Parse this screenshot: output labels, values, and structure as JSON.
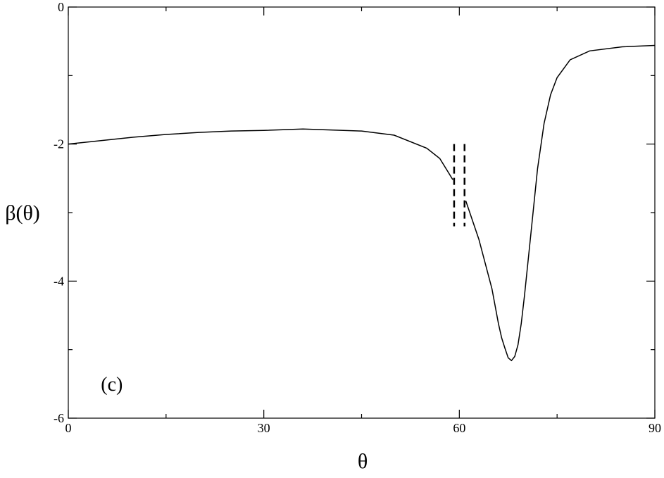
{
  "chart_data": {
    "type": "line",
    "color": "#000000",
    "xlabel": "θ",
    "ylabel": "β(θ)",
    "annotation": {
      "text": "(c)",
      "x": 5,
      "y": -5.6
    },
    "x": [
      0,
      5,
      10,
      15,
      20,
      25,
      30,
      36,
      45,
      50,
      55,
      57,
      59,
      null,
      61,
      63,
      65,
      66,
      66.5,
      67,
      67.5,
      68,
      68.5,
      69,
      69.5,
      70,
      71,
      72,
      73,
      74,
      75,
      77,
      80,
      85,
      90
    ],
    "values": [
      -2.0,
      -1.95,
      -1.9,
      -1.86,
      -1.83,
      -1.81,
      -1.8,
      -1.78,
      -1.81,
      -1.87,
      -2.06,
      -2.21,
      -2.52,
      null,
      -2.83,
      -3.39,
      -4.11,
      -4.62,
      -4.83,
      -4.98,
      -5.12,
      -5.16,
      -5.1,
      -4.93,
      -4.62,
      -4.21,
      -3.29,
      -2.36,
      -1.7,
      -1.28,
      -1.03,
      -0.77,
      -0.64,
      -0.58,
      -0.56
    ],
    "vlines": [
      {
        "x": 59.2,
        "y": [
          -2.0,
          -3.2
        ]
      },
      {
        "x": 60.8,
        "y": [
          -2.0,
          -3.2
        ]
      }
    ],
    "xlim": [
      0,
      90
    ],
    "ylim": [
      -6,
      0
    ],
    "xticks": [
      0,
      30,
      60,
      90
    ],
    "yticks": [
      0,
      -2,
      -4,
      -6
    ],
    "xminorticks": [
      15,
      45,
      75
    ],
    "yminorticks": [
      -1,
      -3,
      -5
    ]
  }
}
